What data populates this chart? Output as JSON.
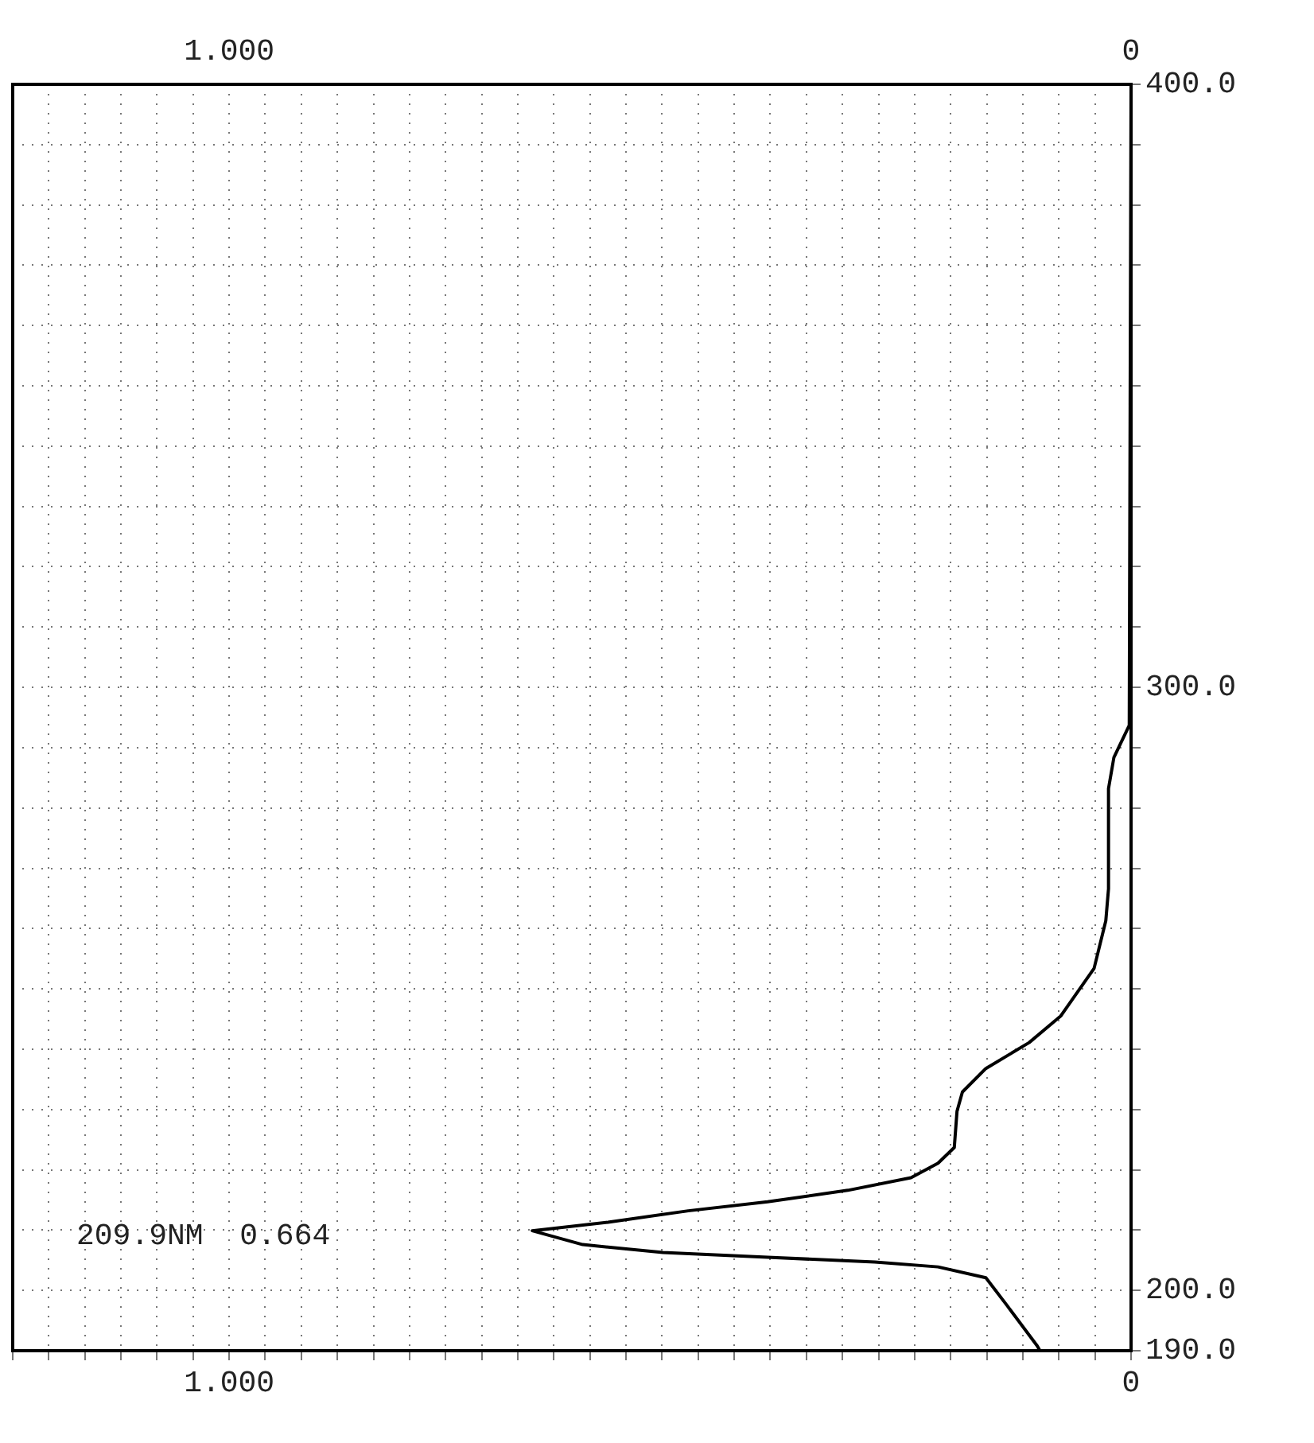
{
  "chart_data": {
    "type": "line",
    "series": [
      {
        "color": "#000000",
        "x": [
          0,
          0.002,
          0.019,
          0.025,
          0.025,
          0.028,
          0.041,
          0.078,
          0.113,
          0.161,
          0.187,
          0.193,
          0.196,
          0.214,
          0.244,
          0.314,
          0.403,
          0.491,
          0.58,
          0.664,
          0.608,
          0.519,
          0.403,
          0.284,
          0.214,
          0.161,
          0.138,
          0.104,
          0.101
        ],
        "values": [
          400,
          293.7,
          288.4,
          283.2,
          266.6,
          261.3,
          253.4,
          245.5,
          241.1,
          236.8,
          232.9,
          229.7,
          223.7,
          221.1,
          218.7,
          216.6,
          214.7,
          213.2,
          211.3,
          209.9,
          207.6,
          206.3,
          205.5,
          204.7,
          203.9,
          202.1,
          197.6,
          190.8,
          190
        ]
      }
    ],
    "xlim": [
      1.24,
      0
    ],
    "xticks": [
      {
        "value": 1.24,
        "label": null
      },
      {
        "value": 1.2,
        "label": null
      },
      {
        "value": 1.16,
        "label": null
      },
      {
        "value": 1.12,
        "label": null
      },
      {
        "value": 1.08,
        "label": null
      },
      {
        "value": 1.04,
        "label": null
      },
      {
        "value": 1,
        "label": "1.000"
      },
      {
        "value": 0.96,
        "label": null
      },
      {
        "value": 0.92,
        "label": null
      },
      {
        "value": 0.88,
        "label": null
      },
      {
        "value": 0.84,
        "label": null
      },
      {
        "value": 0.8,
        "label": null
      },
      {
        "value": 0.76,
        "label": null
      },
      {
        "value": 0.72,
        "label": null
      },
      {
        "value": 0.68,
        "label": null
      },
      {
        "value": 0.64,
        "label": null
      },
      {
        "value": 0.6,
        "label": null
      },
      {
        "value": 0.56,
        "label": null
      },
      {
        "value": 0.52,
        "label": null
      },
      {
        "value": 0.48,
        "label": null
      },
      {
        "value": 0.44,
        "label": null
      },
      {
        "value": 0.4,
        "label": null
      },
      {
        "value": 0.36,
        "label": null
      },
      {
        "value": 0.32,
        "label": null
      },
      {
        "value": 0.28,
        "label": null
      },
      {
        "value": 0.24,
        "label": null
      },
      {
        "value": 0.2,
        "label": null
      },
      {
        "value": 0.16,
        "label": null
      },
      {
        "value": 0.12,
        "label": null
      },
      {
        "value": 0.08,
        "label": null
      },
      {
        "value": 0.04,
        "label": null
      },
      0
    ],
    "x2lim": [
      1.24,
      0
    ],
    "x2ticks": [
      {
        "value": 1,
        "label": "1.000"
      },
      0
    ],
    "ylim": [
      190,
      400
    ],
    "yticks": [
      {
        "value": 190,
        "label": "190.0"
      },
      {
        "value": 200,
        "label": "200.0"
      },
      {
        "value": 210,
        "label": null
      },
      {
        "value": 220,
        "label": null
      },
      {
        "value": 230,
        "label": null
      },
      {
        "value": 240,
        "label": null
      },
      {
        "value": 250,
        "label": null
      },
      {
        "value": 260,
        "label": null
      },
      {
        "value": 270,
        "label": null
      },
      {
        "value": 280,
        "label": null
      },
      {
        "value": 290,
        "label": null
      },
      {
        "value": 300,
        "label": "300.0"
      },
      {
        "value": 310,
        "label": null
      },
      {
        "value": 320,
        "label": null
      },
      {
        "value": 330,
        "label": null
      },
      {
        "value": 340,
        "label": null
      },
      {
        "value": 350,
        "label": null
      },
      {
        "value": 360,
        "label": null
      },
      {
        "value": 370,
        "label": null
      },
      {
        "value": 380,
        "label": null
      },
      {
        "value": 390,
        "label": null
      },
      {
        "value": 400,
        "label": "400.0"
      }
    ],
    "grid": true,
    "line_style": "solid",
    "marker": "none",
    "annotations": [
      "209.9NM  0.664"
    ]
  }
}
